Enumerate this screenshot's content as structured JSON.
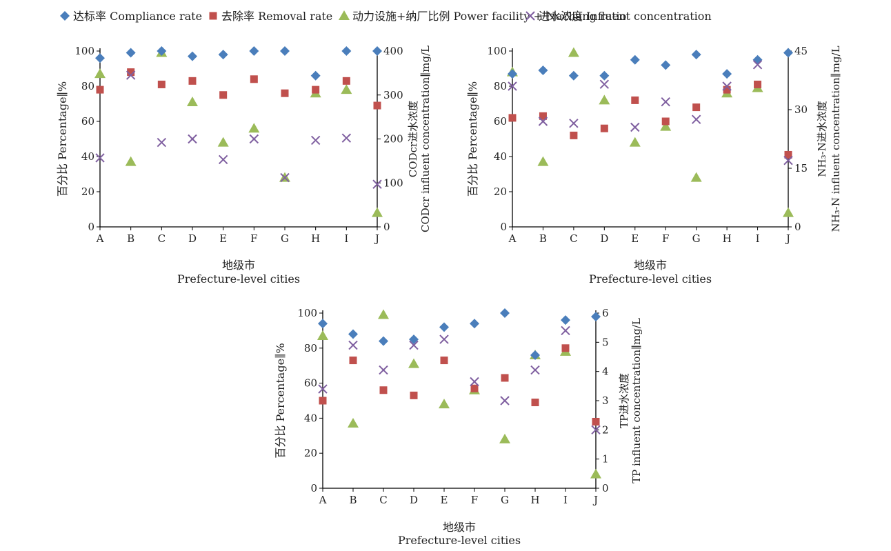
{
  "legend": [
    {
      "label": "达标率 Compliance rate",
      "marker": "diamond",
      "color": "#4a7ebb"
    },
    {
      "label": "去除率 Removal rate",
      "marker": "square",
      "color": "#c0504d"
    },
    {
      "label": "动力设施+纳厂比例 Power facility + Nachang ratio",
      "marker": "triangle",
      "color": "#9bbb59"
    },
    {
      "label": "进水浓度 Influent concentration",
      "marker": "x",
      "color": "#7f5fa0"
    }
  ],
  "chart_data": [
    {
      "type": "scatter",
      "categories": [
        "A",
        "B",
        "C",
        "D",
        "E",
        "F",
        "G",
        "H",
        "I",
        "J"
      ],
      "xlabel": [
        "地级市",
        "Prefecture-level cities"
      ],
      "ylabel": "百分比 Percentage∥%",
      "ylim": [
        0,
        100
      ],
      "yticks": [
        0,
        20,
        40,
        60,
        80,
        100
      ],
      "y2label": [
        "CODcr进水浓度",
        "CODcr influent concentration∥mg/L"
      ],
      "y2lim": [
        0,
        400
      ],
      "y2ticks": [
        0,
        100,
        200,
        300,
        400
      ],
      "series": [
        {
          "name": "达标率 Compliance rate",
          "axis": "left",
          "values": [
            96,
            99,
            100,
            97,
            98,
            100,
            100,
            86,
            100,
            100
          ]
        },
        {
          "name": "去除率 Removal rate",
          "axis": "left",
          "values": [
            78,
            88,
            81,
            83,
            75,
            84,
            76,
            78,
            83,
            69
          ]
        },
        {
          "name": "动力设施+纳厂比例 Power facility + Nachang ratio",
          "axis": "left",
          "values": [
            87,
            37,
            99,
            71,
            48,
            56,
            28,
            76,
            78,
            8
          ]
        },
        {
          "name": "进水浓度 Influent concentration",
          "axis": "right",
          "values": [
            157,
            345,
            192,
            200,
            153,
            200,
            112,
            197,
            202,
            97
          ]
        }
      ]
    },
    {
      "type": "scatter",
      "categories": [
        "A",
        "B",
        "C",
        "D",
        "E",
        "F",
        "G",
        "H",
        "I",
        "J"
      ],
      "xlabel": [
        "地级市",
        "Prefecture-level cities"
      ],
      "ylabel": "百分比 Percentage∥%",
      "ylim": [
        0,
        100
      ],
      "yticks": [
        0,
        20,
        40,
        60,
        80,
        100
      ],
      "y2label": [
        "NH₃-N进水浓度",
        "NH₃-N influent concentration∥mg/L"
      ],
      "y2lim": [
        0,
        45
      ],
      "y2ticks": [
        0,
        15,
        30,
        45
      ],
      "series": [
        {
          "name": "达标率 Compliance rate",
          "axis": "left",
          "values": [
            87,
            89,
            86,
            86,
            95,
            92,
            98,
            87,
            95,
            99
          ]
        },
        {
          "name": "去除率 Removal rate",
          "axis": "left",
          "values": [
            62,
            63,
            52,
            56,
            72,
            60,
            68,
            78,
            81,
            41
          ]
        },
        {
          "name": "动力设施+纳厂比例 Power facility + Nachang ratio",
          "axis": "left",
          "values": [
            88,
            37,
            99,
            72,
            48,
            57,
            28,
            76,
            79,
            8
          ]
        },
        {
          "name": "进水浓度 Influent concentration",
          "axis": "right",
          "values": [
            36,
            27,
            26.5,
            36.5,
            25.5,
            32,
            27.5,
            36,
            41.5,
            17
          ]
        }
      ]
    },
    {
      "type": "scatter",
      "categories": [
        "A",
        "B",
        "C",
        "D",
        "E",
        "F",
        "G",
        "H",
        "I",
        "J"
      ],
      "xlabel": [
        "地级市",
        "Prefecture-level cities"
      ],
      "ylabel": "百分比 Percentage∥%",
      "ylim": [
        0,
        100
      ],
      "yticks": [
        0,
        20,
        40,
        60,
        80,
        100
      ],
      "y2label": [
        "TP进水浓度",
        "TP influent concentration∥mg/L"
      ],
      "y2lim": [
        0,
        6
      ],
      "y2ticks": [
        0,
        1,
        2,
        3,
        4,
        5,
        6
      ],
      "series": [
        {
          "name": "达标率 Compliance rate",
          "axis": "left",
          "values": [
            94,
            88,
            84,
            85,
            92,
            94,
            100,
            76,
            96,
            98
          ]
        },
        {
          "name": "去除率 Removal rate",
          "axis": "left",
          "values": [
            50,
            73,
            56,
            53,
            73,
            57,
            63,
            49,
            80,
            38
          ]
        },
        {
          "name": "动力设施+纳厂比例 Power facility + Nachang ratio",
          "axis": "left",
          "values": [
            87,
            37,
            99,
            71,
            48,
            56,
            28,
            76,
            78,
            8
          ]
        },
        {
          "name": "进水浓度 Influent concentration",
          "axis": "right",
          "values": [
            3.4,
            4.9,
            4.05,
            4.9,
            5.1,
            3.65,
            3.0,
            4.05,
            5.4,
            2.0
          ]
        }
      ]
    }
  ]
}
